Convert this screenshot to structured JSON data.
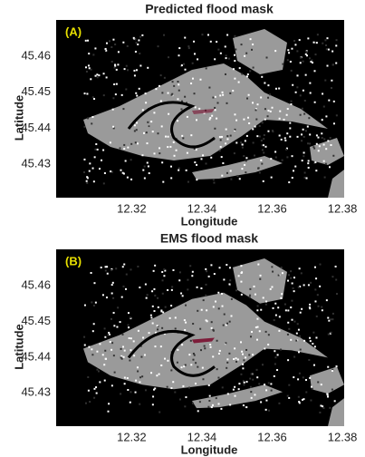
{
  "chart_data": [
    {
      "type": "image",
      "title": "Predicted flood mask",
      "panel_label": "(A)",
      "xlabel": "Longitude",
      "ylabel": "Latitude",
      "xlim": [
        12.2985,
        12.3805
      ],
      "ylim": [
        45.4207,
        45.4701
      ],
      "xticks": [
        12.32,
        12.34,
        12.36,
        12.38
      ],
      "yticks": [
        45.46,
        45.45,
        45.44,
        45.43
      ]
    },
    {
      "type": "image",
      "title": "EMS flood mask",
      "panel_label": "(B)",
      "xlabel": "Longitude",
      "ylabel": "Latitude",
      "xlim": [
        12.2985,
        12.3805
      ],
      "ylim": [
        45.4207,
        45.4701
      ],
      "xticks": [
        12.32,
        12.34,
        12.36,
        12.38
      ],
      "yticks": [
        45.46,
        45.45,
        45.44,
        45.43
      ]
    }
  ]
}
